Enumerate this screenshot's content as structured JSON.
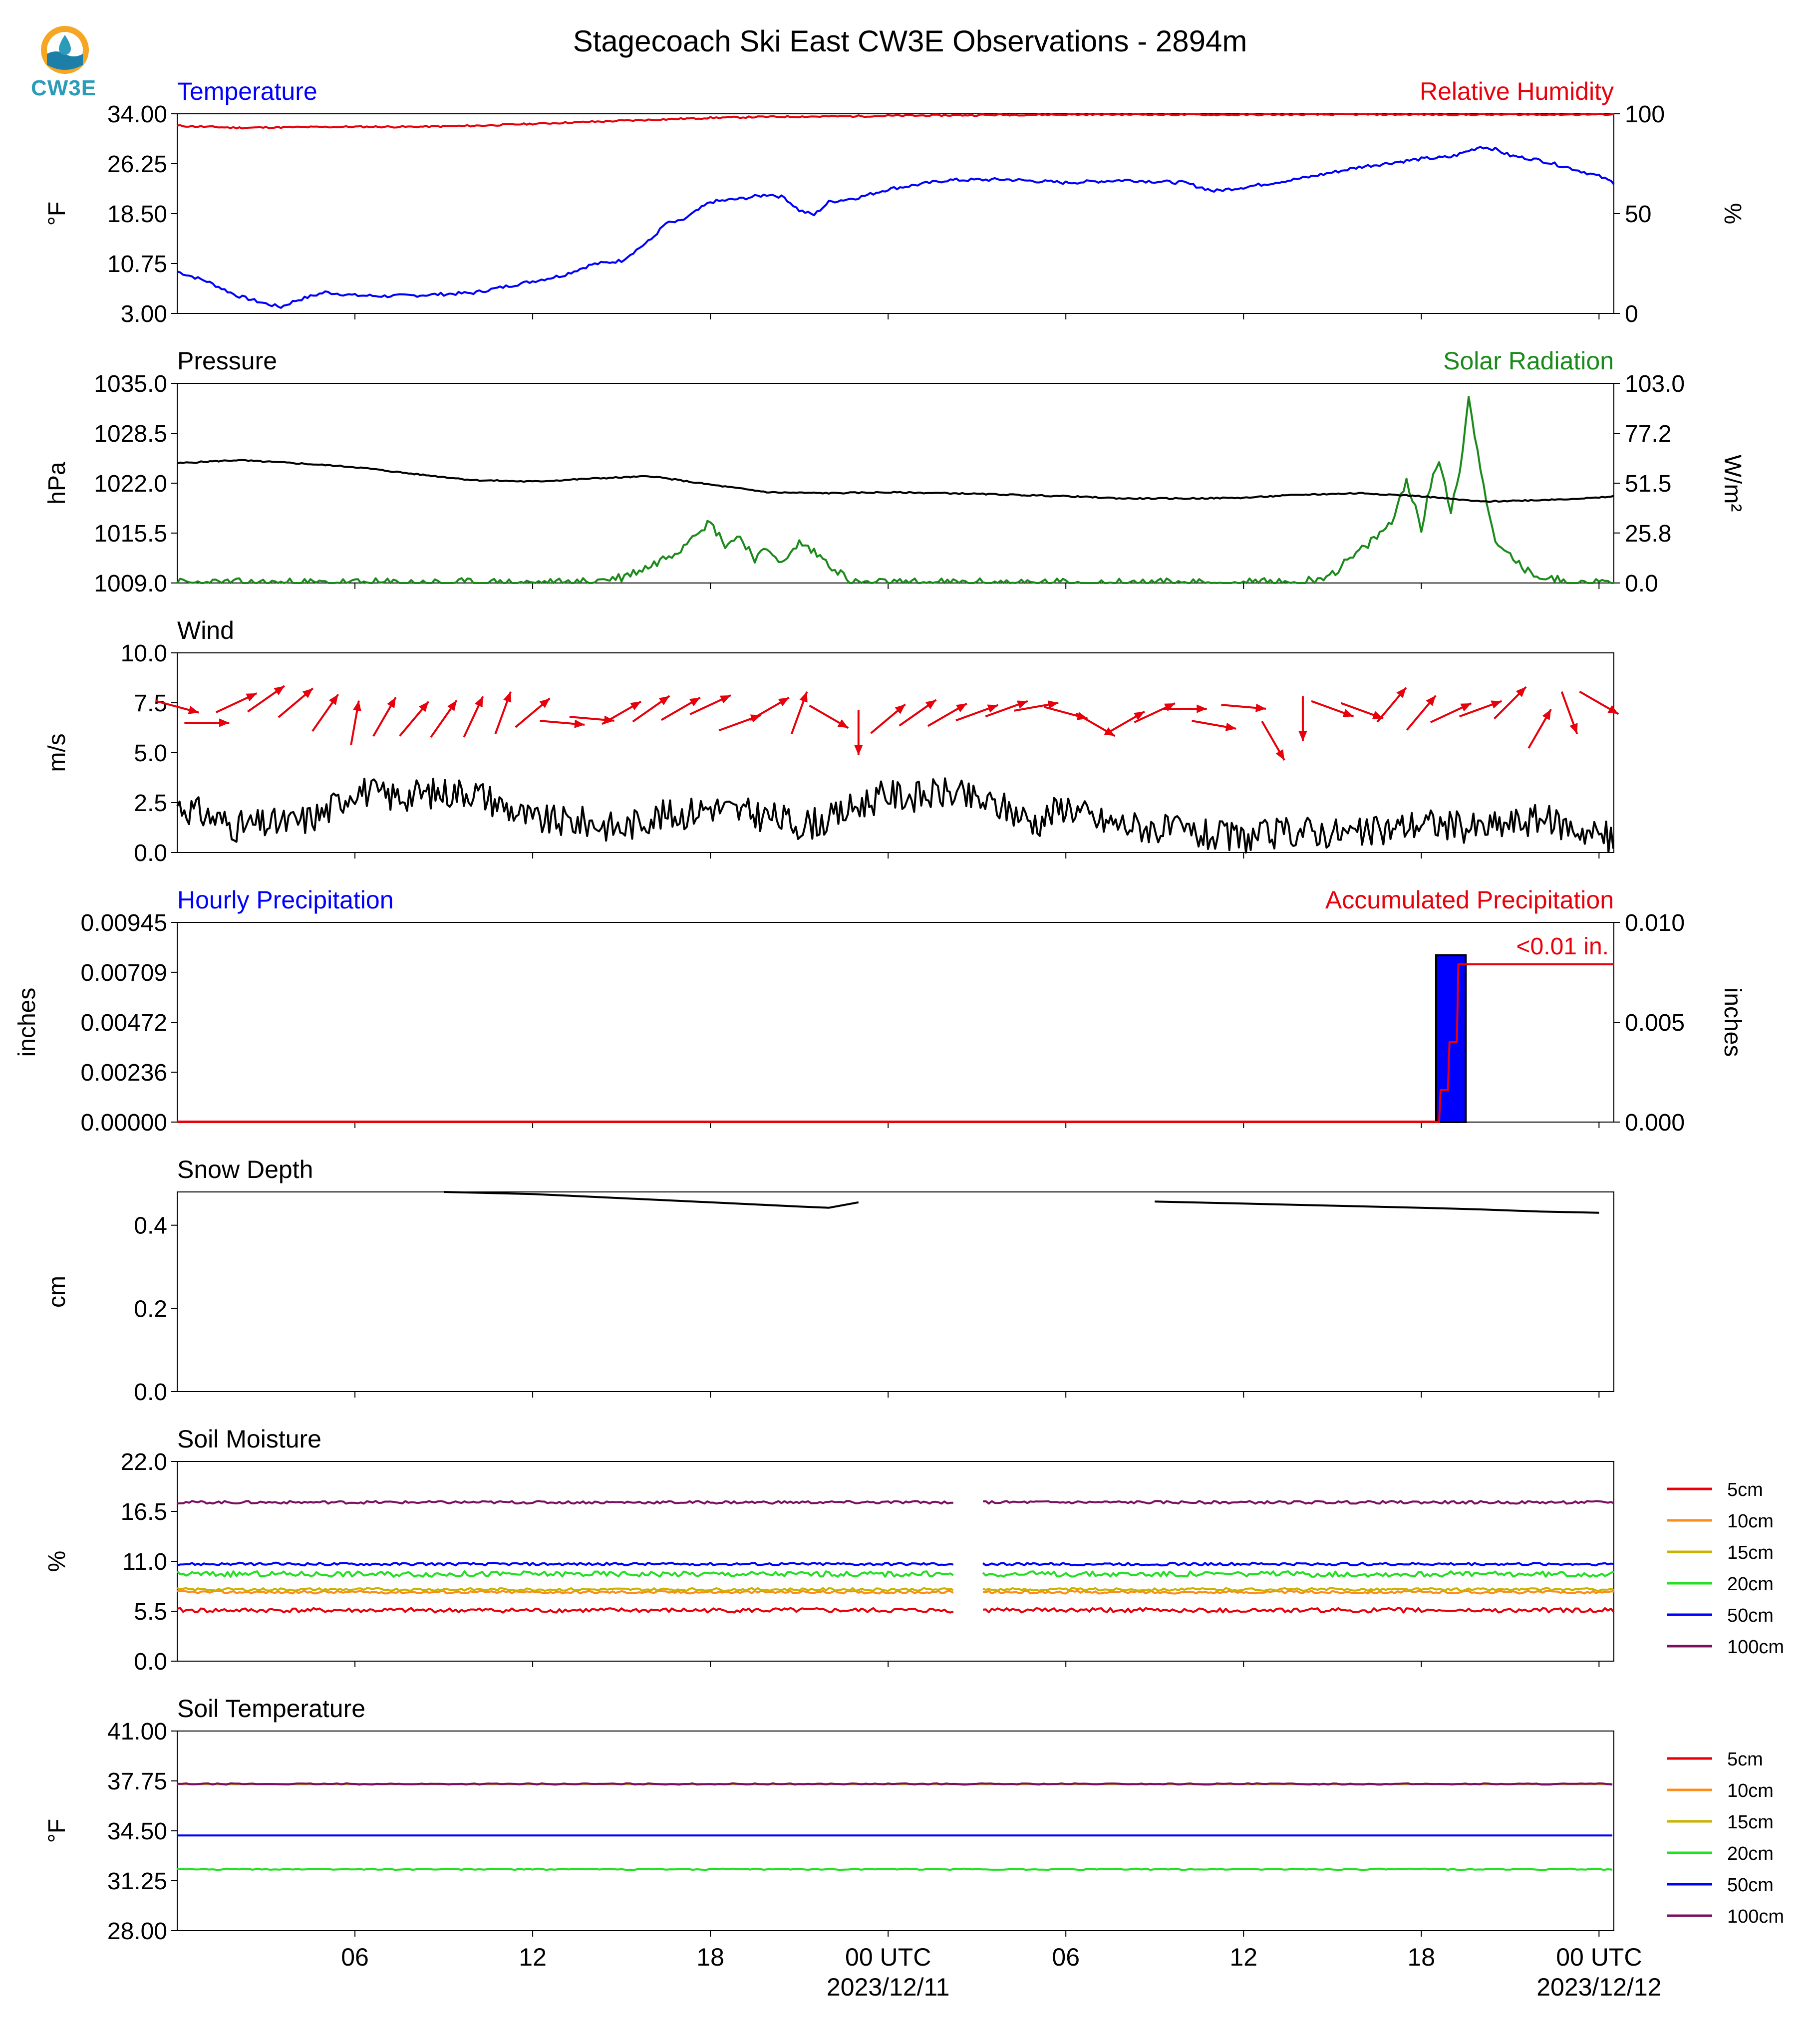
{
  "title": "Stagecoach Ski East CW3E Observations - 2894m",
  "logo": {
    "text": "CW3E"
  },
  "x_axis": {
    "ticks": [
      "06",
      "12",
      "18",
      "00 UTC",
      "06",
      "12",
      "18",
      "00 UTC"
    ],
    "date_labels": [
      "2023/12/11",
      "2023/12/12"
    ]
  },
  "colors": {
    "red": "#e8000b",
    "blue": "#0000ff",
    "green": "#1a8a1a",
    "black": "#000000"
  },
  "chart_data": [
    {
      "type": "line",
      "left_title": "Temperature",
      "right_title": "Relative Humidity",
      "ylabel": "°F",
      "ylabel_right": "%",
      "ylim": [
        3.0,
        34.0
      ],
      "ylim_right": [
        0,
        100
      ],
      "yticks": [
        "34.00",
        "26.25",
        "18.50",
        "10.75",
        "3.00"
      ],
      "yticks_right": [
        "100",
        "50",
        "0"
      ],
      "series": [
        {
          "axis": "left",
          "color": "#0000ff",
          "hours": [
            0,
            1,
            2,
            3,
            3.5,
            4,
            5,
            6,
            7,
            8,
            10,
            12,
            13,
            14,
            15,
            16,
            16.5,
            17,
            18,
            19,
            20,
            20.5,
            21,
            21.5,
            22,
            23,
            24,
            26,
            28,
            30,
            32,
            34,
            35,
            36,
            37,
            38,
            40,
            42,
            43,
            44,
            44.5,
            45,
            46,
            47,
            48,
            48.5
          ],
          "values": [
            9.5,
            8,
            5.8,
            4.5,
            4,
            5,
            6.3,
            5.8,
            5.7,
            5.8,
            6.2,
            8,
            8.9,
            10.6,
            11.2,
            14.5,
            17,
            17.3,
            20.3,
            20.8,
            21.5,
            21,
            19,
            18.3,
            20.3,
            21,
            22.3,
            23.7,
            23.8,
            23.3,
            23.7,
            23.3,
            22,
            22.6,
            23.3,
            24,
            25.8,
            27,
            27.3,
            28.9,
            28.5,
            27.5,
            26.8,
            25.6,
            24.3,
            23.3
          ]
        },
        {
          "axis": "right",
          "color": "#e8000b",
          "hours": [
            0,
            2,
            4,
            6,
            8,
            10,
            12,
            14,
            16,
            18,
            20,
            22,
            24,
            28,
            32,
            36,
            40,
            44,
            48,
            48.5
          ],
          "values": [
            94,
            93,
            93.3,
            93.5,
            93.5,
            94,
            95,
            96,
            97,
            98,
            98.5,
            98.7,
            99,
            99.5,
            99.7,
            99.5,
            99.7,
            99.6,
            99.7,
            99.8
          ]
        }
      ]
    },
    {
      "type": "line",
      "left_title": "Pressure",
      "right_title": "Solar Radiation",
      "ylabel": "hPa",
      "ylabel_right": "W/m²",
      "ylim": [
        1009.0,
        1035.0
      ],
      "ylim_right": [
        0.0,
        103.0
      ],
      "yticks": [
        "1035.0",
        "1028.5",
        "1022.0",
        "1015.5",
        "1009.0"
      ],
      "yticks_right": [
        "103.0",
        "77.2",
        "51.5",
        "25.8",
        "0.0"
      ],
      "series": [
        {
          "axis": "left",
          "color": "#000000",
          "hours": [
            0,
            2,
            4,
            6,
            8,
            10,
            12,
            14,
            16,
            18,
            20,
            22,
            24,
            26,
            28,
            30,
            32,
            34,
            36,
            38,
            40,
            42,
            44,
            46,
            48,
            48.5
          ],
          "values": [
            1024.6,
            1025,
            1024.6,
            1024.1,
            1023.2,
            1022.4,
            1022.2,
            1022.6,
            1022.9,
            1021.8,
            1020.8,
            1020.7,
            1020.8,
            1020.7,
            1020.5,
            1020.3,
            1020.0,
            1020.0,
            1020.1,
            1020.5,
            1020.7,
            1020.3,
            1019.6,
            1019.8,
            1020.1,
            1020.3
          ]
        },
        {
          "axis": "right",
          "color": "#1a8a1a",
          "hours": [
            0,
            13.5,
            15,
            16,
            17,
            17.5,
            18,
            18.5,
            19,
            19.5,
            20,
            20.5,
            21,
            21.5,
            22,
            22.5,
            22.6,
            38,
            39,
            39.5,
            40,
            40.5,
            41,
            41.5,
            42,
            42.3,
            42.6,
            43,
            43.3,
            43.6,
            44,
            44.5,
            45,
            45.5,
            46,
            46.5,
            47,
            48.5
          ],
          "values": [
            0,
            0,
            3,
            9,
            18,
            27,
            31,
            20,
            24,
            13,
            17,
            10,
            21,
            16,
            10,
            4,
            0,
            0,
            5,
            11,
            17,
            24,
            31,
            54,
            28,
            49,
            64,
            38,
            58,
            95,
            60,
            19,
            15,
            6,
            4,
            2,
            0,
            0
          ]
        }
      ]
    },
    {
      "type": "line",
      "left_title": "Wind",
      "ylabel": "m/s",
      "ylim": [
        0.0,
        10.0
      ],
      "yticks": [
        "10.0",
        "7.5",
        "5.0",
        "2.5",
        "0.0"
      ],
      "series": [
        {
          "axis": "left",
          "color": "#000000",
          "name": "",
          "hours": [
            0,
            2,
            4,
            5,
            6,
            7,
            8,
            10,
            12,
            14,
            15,
            16,
            17,
            18,
            19,
            20,
            21,
            22,
            23,
            24,
            25,
            26,
            28,
            29,
            30,
            31,
            32,
            34,
            35,
            36,
            38,
            40,
            42,
            44,
            46,
            48,
            48.5
          ],
          "values": [
            2.4,
            1.3,
            1.5,
            2.0,
            3.2,
            2.8,
            2.9,
            3.1,
            1.6,
            1.5,
            1.2,
            1.8,
            1.9,
            2.3,
            2.0,
            1.8,
            1.4,
            1.6,
            2.4,
            2.9,
            2.8,
            3.0,
            2.2,
            1.5,
            2.4,
            1.6,
            1.4,
            1.0,
            0.8,
            0.7,
            1.1,
            0.9,
            1.5,
            1.2,
            1.7,
            0.9,
            0.6
          ]
        }
      ],
      "wind_barb_y": 7.5,
      "wind_barb_hours": [
        0,
        1,
        2,
        3,
        4,
        5,
        6,
        7,
        8,
        9,
        10,
        11,
        12,
        13,
        14,
        15,
        16,
        17,
        18,
        19,
        20,
        21,
        22,
        23,
        24,
        25,
        26,
        27,
        28,
        29,
        30,
        31,
        32,
        33,
        34,
        35,
        36,
        37,
        38,
        39,
        40,
        41,
        42,
        43,
        44,
        45,
        46,
        47,
        48
      ],
      "wind_barb_dirdeg": [
        105,
        90,
        65,
        55,
        50,
        35,
        10,
        30,
        40,
        35,
        25,
        20,
        50,
        95,
        95,
        60,
        55,
        60,
        65,
        70,
        60,
        20,
        120,
        180,
        50,
        55,
        60,
        70,
        70,
        80,
        105,
        120,
        60,
        65,
        90,
        100,
        95,
        150,
        180,
        110,
        110,
        40,
        40,
        65,
        70,
        45,
        30,
        160,
        120
      ],
      "wind_barb_speed": [
        7.3,
        6.5,
        7.5,
        7.7,
        7.5,
        7,
        6.5,
        6.8,
        6.7,
        6.7,
        6.8,
        7,
        7,
        6.5,
        6.7,
        7,
        7.2,
        7.2,
        7.4,
        6.5,
        7.2,
        7,
        6.8,
        6,
        6.7,
        7,
        6.9,
        7,
        7.2,
        7.3,
        7,
        6.4,
        6.5,
        7,
        7.2,
        6.4,
        7.3,
        5.6,
        6.7,
        7.2,
        7.1,
        7.4,
        7,
        7,
        7.2,
        7.5,
        6.2,
        7,
        7.5
      ]
    },
    {
      "type": "bar",
      "left_title": "Hourly Precipitation",
      "right_title": "Accumulated Precipitation",
      "ylabel": "inches",
      "ylabel_right": "inches",
      "ylim": [
        0.0,
        0.00945
      ],
      "ylim_right": [
        0.0,
        0.01
      ],
      "yticks": [
        "0.00945",
        "0.00709",
        "0.00472",
        "0.00236",
        "0.00000"
      ],
      "yticks_right": [
        "0.010",
        "0.005",
        "0.000"
      ],
      "annotation": "<0.01 in.",
      "bars": [
        {
          "start_hour": 42.5,
          "end_hour": 43.5,
          "value": 0.0079
        }
      ],
      "accum": {
        "hours": [
          0,
          42.6,
          42.65,
          42.9,
          42.95,
          43.2,
          43.25,
          48.5
        ],
        "values": [
          0,
          0,
          0.0016,
          0.0016,
          0.004,
          0.004,
          0.0079,
          0.0079
        ]
      }
    },
    {
      "type": "line",
      "left_title": "Snow Depth",
      "ylabel": "cm",
      "ylim": [
        0.0,
        0.48
      ],
      "yticks": [
        "0.4",
        "0.2",
        "0.0"
      ],
      "ytick_values": [
        0.4,
        0.2,
        0.0
      ],
      "segments": [
        {
          "hours": [
            9,
            12,
            15,
            18,
            21,
            22,
            23
          ],
          "values": [
            0.48,
            0.475,
            0.465,
            0.455,
            0.445,
            0.442,
            0.455
          ]
        },
        {
          "hours": [
            33,
            36,
            39,
            42,
            44,
            46,
            48
          ],
          "values": [
            0.457,
            0.452,
            0.447,
            0.442,
            0.438,
            0.433,
            0.43
          ]
        }
      ],
      "color": "#000000"
    },
    {
      "type": "line",
      "left_title": "Soil Moisture",
      "ylabel": "%",
      "ylim": [
        0.0,
        22.0
      ],
      "yticks": [
        "22.0",
        "16.5",
        "11.0",
        "5.5",
        "0.0"
      ],
      "gap_hours": [
        26.2,
        27.2
      ],
      "series": [
        {
          "name": "5cm",
          "color": "#e8000b",
          "value": 5.6
        },
        {
          "name": "10cm",
          "color": "#ff8c1a",
          "value": 7.6
        },
        {
          "name": "15cm",
          "color": "#c8b400",
          "value": 7.9
        },
        {
          "name": "20cm",
          "color": "#22e022",
          "value": 9.6
        },
        {
          "name": "50cm",
          "color": "#0000ff",
          "value": 10.7
        },
        {
          "name": "100cm",
          "color": "#7b1060",
          "value": 17.5
        }
      ]
    },
    {
      "type": "line",
      "left_title": "Soil Temperature",
      "ylabel": "°F",
      "ylim": [
        28.0,
        41.0
      ],
      "yticks": [
        "41.00",
        "37.75",
        "34.50",
        "31.25",
        "28.00"
      ],
      "series": [
        {
          "name": "5cm",
          "color": "#e8000b",
          "value": 37.55
        },
        {
          "name": "10cm",
          "color": "#ff8c1a",
          "value": 37.55
        },
        {
          "name": "15cm",
          "color": "#c8b400",
          "value": 37.55
        },
        {
          "name": "20cm",
          "color": "#22e022",
          "value": 32.0
        },
        {
          "name": "50cm",
          "color": "#0000ff",
          "value": 34.2
        },
        {
          "name": "100cm",
          "color": "#7b1060",
          "value": 37.55
        }
      ]
    }
  ]
}
